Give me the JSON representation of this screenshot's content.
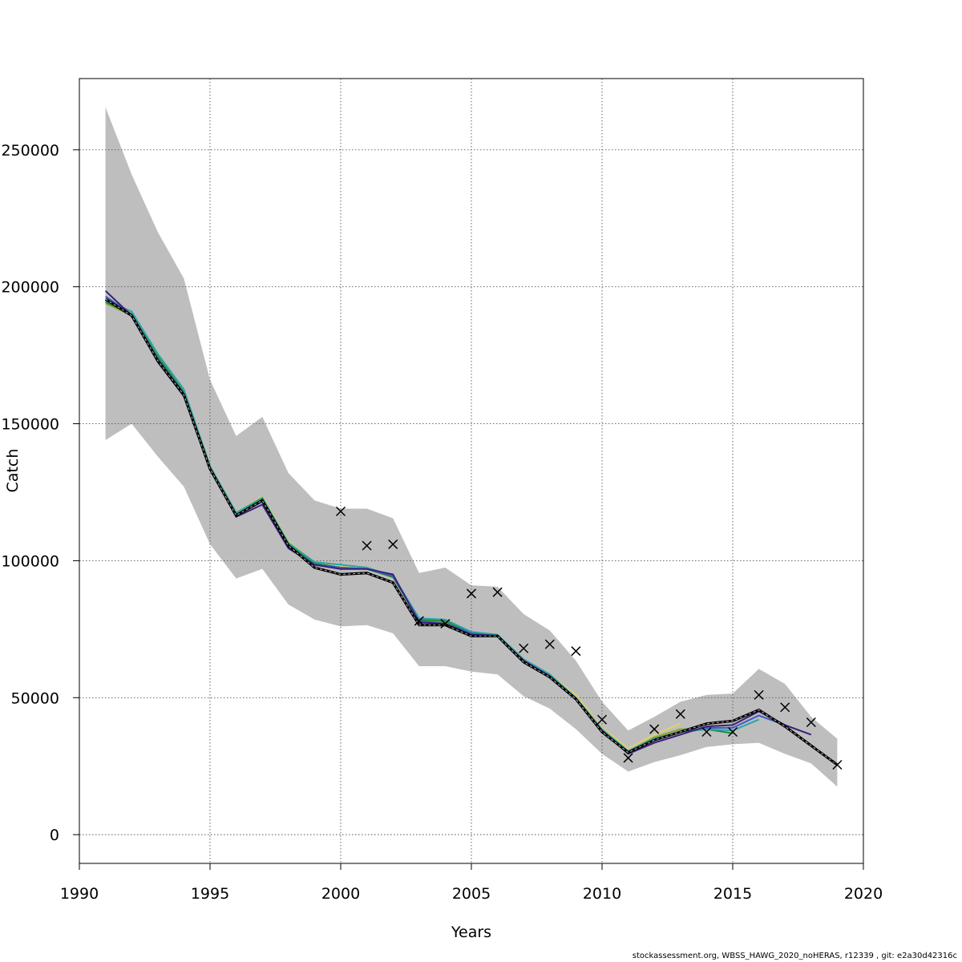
{
  "footer": "stockassessment.org, WBSS_HAWG_2020_noHERAS, r12339 , git: e2a30d42316c",
  "chart_data": {
    "type": "line",
    "title": "",
    "xlabel": "Years",
    "ylabel": "Catch",
    "xlim": [
      1990,
      2020
    ],
    "ylim": [
      -10500,
      276000
    ],
    "x_ticks": [
      1990,
      1995,
      2000,
      2005,
      2010,
      2015,
      2020
    ],
    "y_ticks": [
      0,
      50000,
      100000,
      150000,
      200000,
      250000
    ],
    "grid": true,
    "legend": "none",
    "colors": {
      "band": "#bebebe",
      "grid": "#555555",
      "observed_marker": "#000000",
      "main": "#000000"
    },
    "band": {
      "x": [
        1991,
        1992,
        1993,
        1994,
        1995,
        1996,
        1997,
        1998,
        1999,
        2000,
        2001,
        2002,
        2003,
        2004,
        2005,
        2006,
        2007,
        2008,
        2009,
        2010,
        2011,
        2012,
        2013,
        2014,
        2015,
        2016,
        2017,
        2018,
        2019
      ],
      "lower": [
        144000,
        150000,
        138000,
        127000,
        106000,
        93500,
        97000,
        84000,
        78500,
        76000,
        76500,
        73500,
        61500,
        61500,
        59500,
        58500,
        50500,
        46000,
        38500,
        29500,
        23000,
        26500,
        29000,
        32000,
        33000,
        33500,
        29500,
        26000,
        17500
      ],
      "upper": [
        265500,
        241000,
        220000,
        203000,
        166000,
        145500,
        152500,
        132000,
        122000,
        119000,
        119000,
        115500,
        95500,
        97500,
        91000,
        90500,
        80500,
        74500,
        63500,
        48500,
        38000,
        43000,
        48500,
        51000,
        51500,
        60500,
        55000,
        43000,
        35000
      ]
    },
    "observed": {
      "x": [
        2000,
        2001,
        2002,
        2003,
        2004,
        2005,
        2006,
        2007,
        2008,
        2009,
        2010,
        2011,
        2012,
        2013,
        2014,
        2015,
        2016,
        2017,
        2018,
        2019
      ],
      "values": [
        118000,
        105500,
        106000,
        78000,
        77000,
        88000,
        88500,
        68000,
        69500,
        67000,
        42000,
        28000,
        38500,
        44000,
        37500,
        37500,
        51000,
        46500,
        41000,
        25500
      ]
    },
    "series": [
      {
        "color": "#000000",
        "dashed": true,
        "x": [
          1991,
          1992,
          1993,
          1994,
          1995,
          1996,
          1997,
          1998,
          1999,
          2000,
          2001,
          2002,
          2003,
          2004,
          2005,
          2006,
          2007,
          2008,
          2009,
          2010,
          2011,
          2012,
          2013,
          2014,
          2015,
          2016,
          2017,
          2018,
          2019
        ],
        "values": [
          195500,
          189500,
          173000,
          160500,
          133500,
          116500,
          122000,
          105500,
          97500,
          95000,
          95500,
          92000,
          76500,
          76500,
          72500,
          72500,
          63000,
          57500,
          49500,
          37500,
          30000,
          34500,
          37500,
          40500,
          41500,
          45500,
          39500,
          32500,
          25500
        ]
      },
      {
        "color": "#3b1f7a",
        "x": [
          1991,
          1992,
          1993,
          1994,
          1995,
          1996,
          1997,
          1998,
          1999,
          2000,
          2001,
          2002,
          2003,
          2004,
          2005,
          2006,
          2007,
          2008,
          2009,
          2010,
          2011,
          2012,
          2013,
          2014,
          2015,
          2016,
          2017,
          2018
        ],
        "values": [
          198500,
          189500,
          172500,
          160000,
          133500,
          116000,
          120500,
          104500,
          98500,
          97000,
          97000,
          95000,
          77500,
          77000,
          73000,
          72500,
          63500,
          57500,
          49500,
          38000,
          29500,
          33500,
          36500,
          39500,
          40000,
          45000,
          40000,
          36500
        ]
      },
      {
        "color": "#3c5bc7",
        "x": [
          1991,
          1992,
          1993,
          1994,
          1995,
          1996,
          1997,
          1998,
          1999,
          2000,
          2001,
          2002,
          2003,
          2004,
          2005,
          2006,
          2007,
          2008,
          2009,
          2010,
          2011,
          2012,
          2013,
          2014,
          2015,
          2016,
          2017
        ],
        "values": [
          196500,
          190000,
          173500,
          161000,
          133500,
          116500,
          121500,
          105000,
          98500,
          97500,
          97000,
          94500,
          78000,
          77000,
          73500,
          72500,
          63500,
          58000,
          49500,
          38000,
          30000,
          34500,
          37500,
          39000,
          39000,
          43500,
          40000
        ]
      },
      {
        "color": "#2aa6a1",
        "x": [
          1991,
          1992,
          1993,
          1994,
          1995,
          1996,
          1997,
          1998,
          1999,
          2000,
          2001,
          2002,
          2003,
          2004,
          2005,
          2006,
          2007,
          2008,
          2009,
          2010,
          2011,
          2012,
          2013,
          2014,
          2015,
          2016
        ],
        "values": [
          195000,
          191000,
          175500,
          162500,
          134500,
          117500,
          123000,
          106500,
          99500,
          98500,
          97500,
          94500,
          79000,
          78500,
          74000,
          73000,
          64000,
          58500,
          50000,
          38500,
          30500,
          35000,
          37500,
          38500,
          38000,
          42000
        ]
      },
      {
        "color": "#1f8a3a",
        "x": [
          1991,
          1992,
          1993,
          1994,
          1995,
          1996,
          1997,
          1998,
          1999,
          2000,
          2001,
          2002,
          2003,
          2004,
          2005,
          2006,
          2007,
          2008,
          2009,
          2010,
          2011,
          2012,
          2013,
          2014,
          2015
        ],
        "values": [
          194500,
          190000,
          174500,
          161500,
          134000,
          117000,
          122500,
          106000,
          99000,
          97500,
          97000,
          94000,
          78500,
          78000,
          73500,
          72500,
          63000,
          58000,
          49500,
          37500,
          30000,
          35000,
          37500,
          38500,
          37000
        ]
      },
      {
        "color": "#7fa62a",
        "x": [
          1991,
          1992,
          1993,
          1994,
          1995,
          1996,
          1997,
          1998,
          1999,
          2000,
          2001,
          2002,
          2003,
          2004,
          2005,
          2006,
          2007,
          2008,
          2009,
          2010,
          2011,
          2012,
          2013,
          2014
        ],
        "values": [
          194000,
          189500,
          174000,
          161500,
          134000,
          117000,
          123000,
          106500,
          99000,
          97500,
          97000,
          94000,
          78500,
          77500,
          73000,
          72500,
          63000,
          58000,
          49500,
          38000,
          30500,
          35500,
          38500,
          38500
        ]
      },
      {
        "color": "#e2d06a",
        "x": [
          1991,
          1992,
          1993,
          1994,
          1995,
          1996,
          1997,
          1998,
          1999,
          2000,
          2001,
          2002,
          2003,
          2004,
          2005,
          2006,
          2007,
          2008,
          2009,
          2010,
          2011,
          2012,
          2013
        ],
        "values": [
          195000,
          190500,
          175500,
          162000,
          134500,
          117500,
          123500,
          107000,
          99500,
          98000,
          97500,
          94500,
          78000,
          76500,
          73000,
          72500,
          63500,
          58500,
          51000,
          39000,
          31500,
          36500,
          40500
        ]
      }
    ]
  }
}
